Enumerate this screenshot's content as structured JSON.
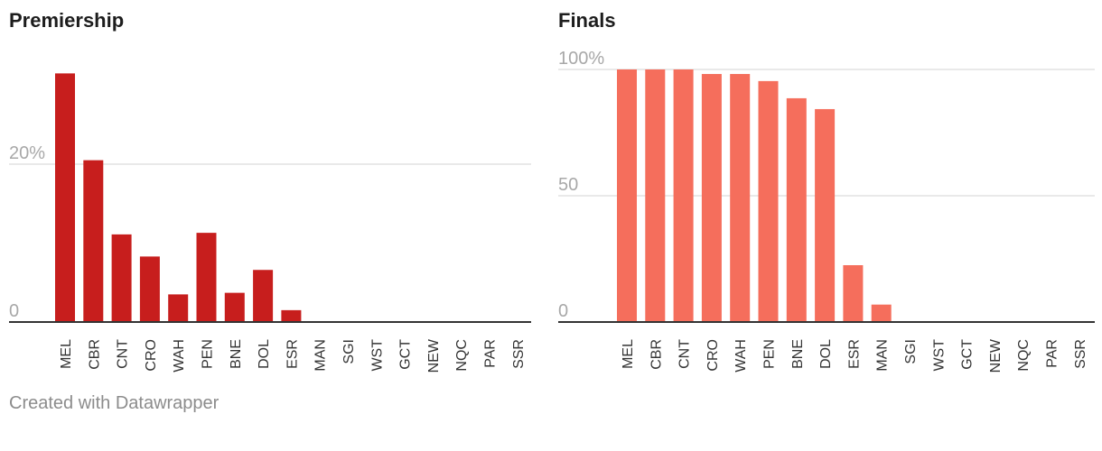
{
  "chart_data": [
    {
      "type": "bar",
      "title": "Premiership",
      "categories": [
        "MEL",
        "CBR",
        "CNT",
        "CRO",
        "WAH",
        "PEN",
        "BNE",
        "DOL",
        "ESR",
        "MAN",
        "SGI",
        "WST",
        "GCT",
        "NEW",
        "NQC",
        "PAR",
        "SSR"
      ],
      "values": [
        31.5,
        20.5,
        11.1,
        8.3,
        3.5,
        11.3,
        3.7,
        6.6,
        1.5,
        0,
        0,
        0,
        0,
        0,
        0,
        0,
        0
      ],
      "yticks": [
        {
          "value": 0,
          "label": "0"
        },
        {
          "value": 20,
          "label": "20%"
        }
      ],
      "ylim": [
        0,
        32
      ],
      "color": "#c71e1d"
    },
    {
      "type": "bar",
      "title": "Finals",
      "categories": [
        "MEL",
        "CBR",
        "CNT",
        "CRO",
        "WAH",
        "PEN",
        "BNE",
        "DOL",
        "ESR",
        "MAN",
        "SGI",
        "WST",
        "GCT",
        "NEW",
        "NQC",
        "PAR",
        "SSR"
      ],
      "values": [
        100,
        100,
        100,
        98.2,
        98.2,
        95.4,
        88.6,
        84.3,
        22.5,
        6.9,
        0,
        0,
        0,
        0,
        0,
        0,
        0
      ],
      "yticks": [
        {
          "value": 0,
          "label": "0"
        },
        {
          "value": 50,
          "label": "50"
        },
        {
          "value": 100,
          "label": "100%"
        }
      ],
      "ylim": [
        0,
        100
      ],
      "color": "#f56e5c"
    }
  ],
  "footer": "Created with Datawrapper"
}
